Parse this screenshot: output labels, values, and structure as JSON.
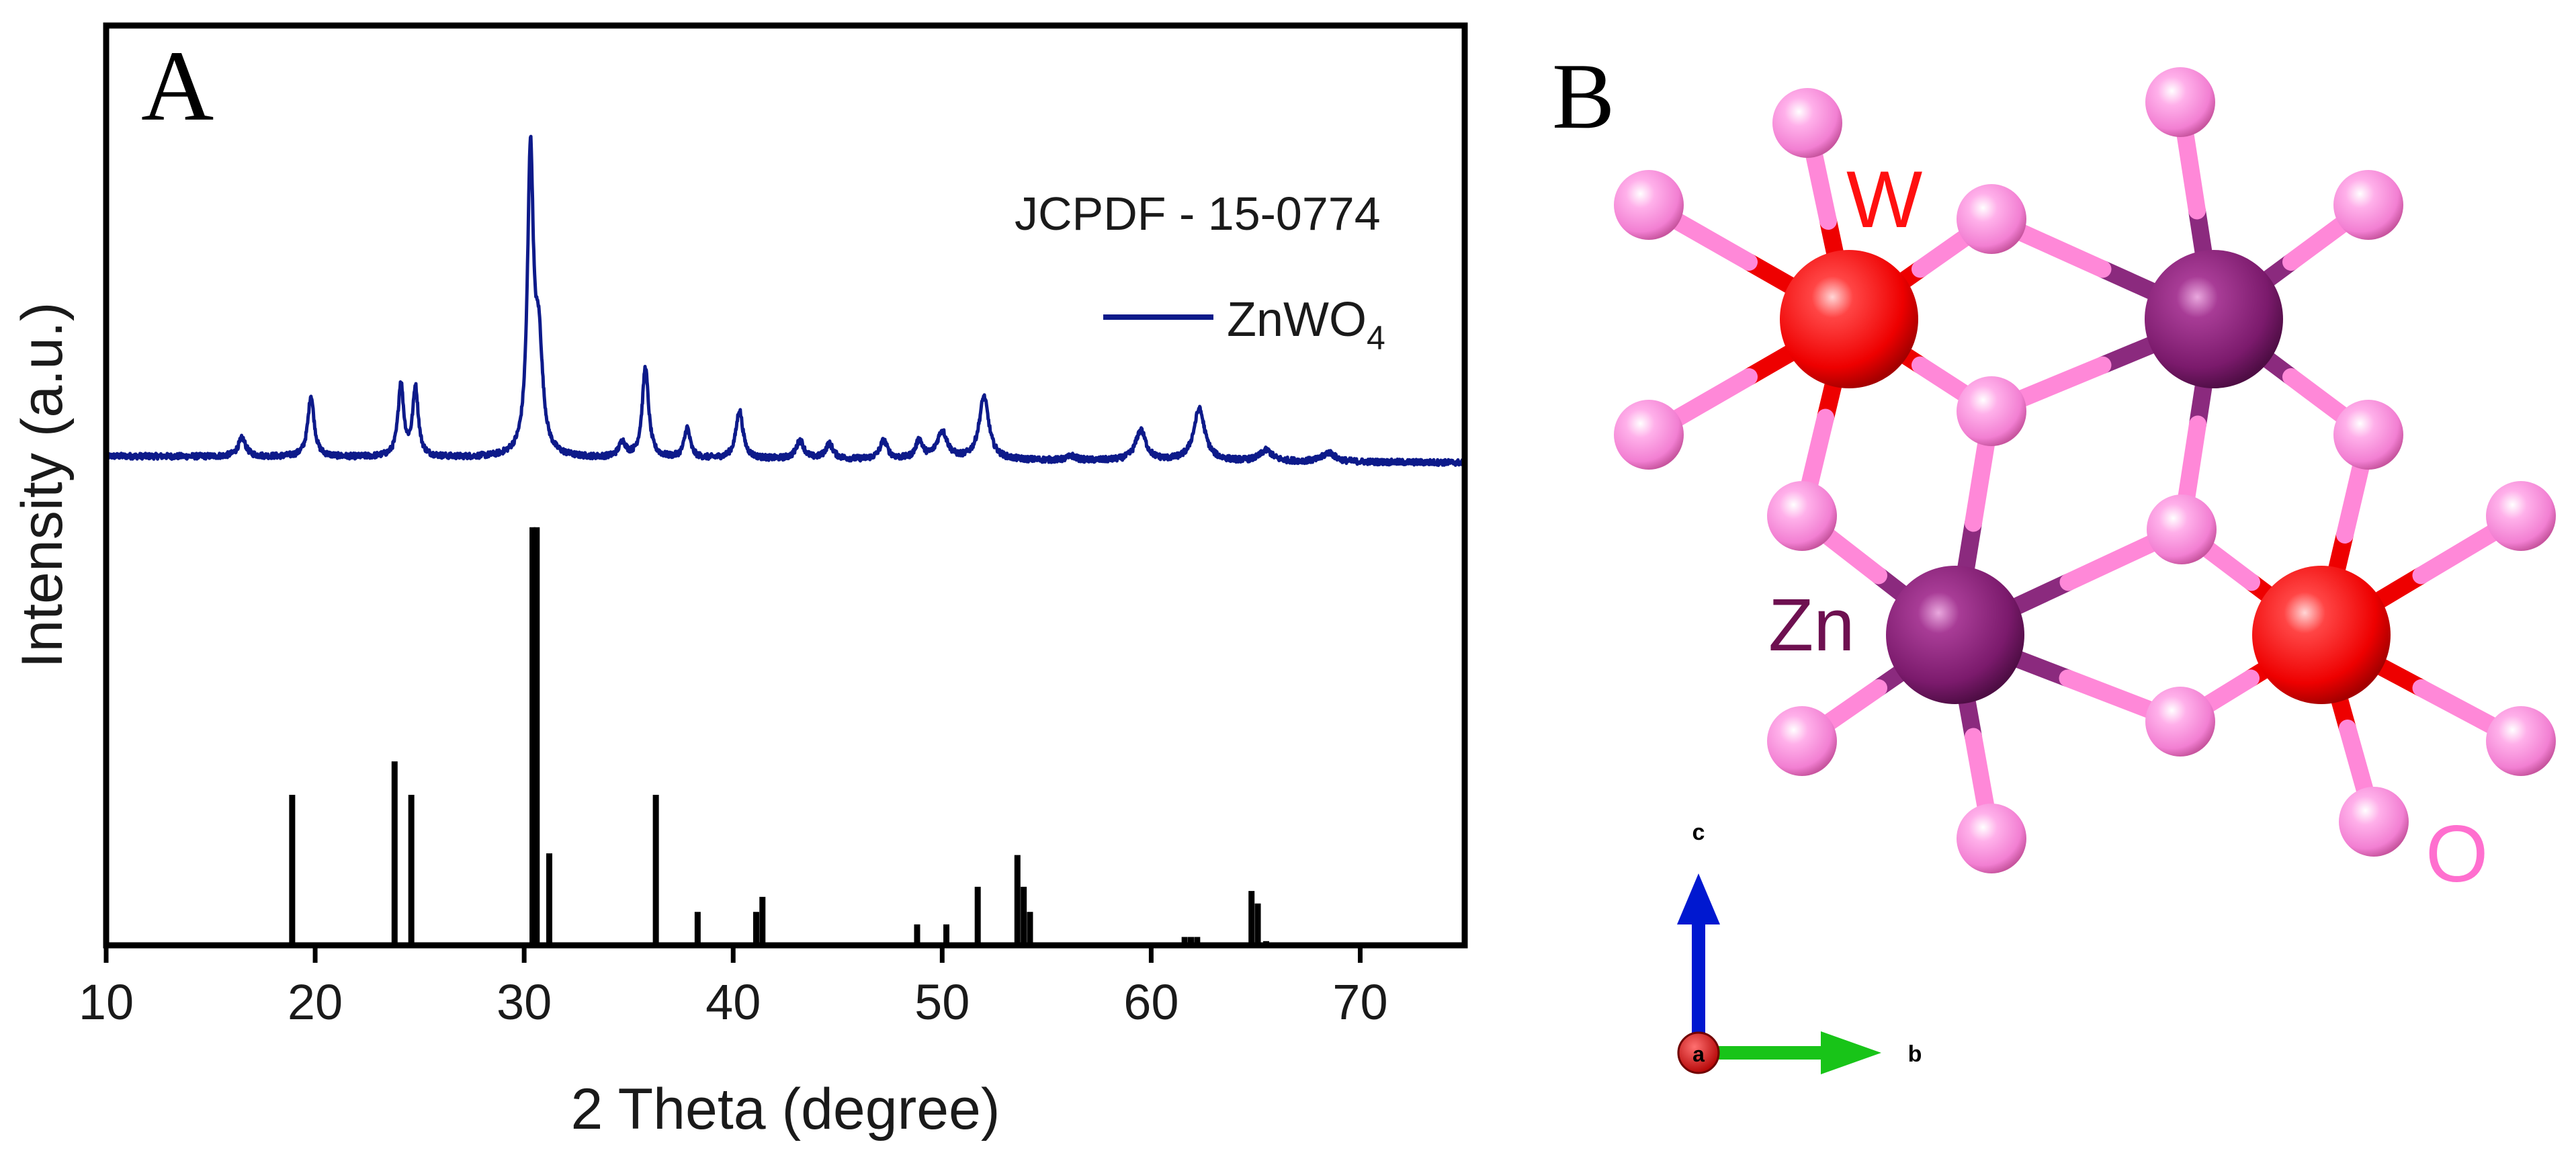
{
  "panels": {
    "a_letter": "A",
    "b_letter": "B"
  },
  "chart_data": {
    "type": "line",
    "title": "",
    "xlabel": "2 Theta (degree)",
    "ylabel": "Intensity (a.u.)",
    "xlim": [
      10,
      75
    ],
    "ylim": [
      0,
      1.1
    ],
    "grid": false,
    "xticks": [
      10,
      20,
      30,
      40,
      50,
      60,
      70
    ],
    "xtick_labels": [
      "10",
      "20",
      "30",
      "40",
      "50",
      "60",
      "70"
    ],
    "annotation": "JCPDF - 15-0774",
    "legend": {
      "position": "top-right",
      "entries": [
        {
          "label": "ZnWO",
          "subscript": "4",
          "color": "#0d1a8a"
        }
      ]
    },
    "series": [
      {
        "name": "ZnWO4 measured pattern",
        "color": "#0d1a8a",
        "baseline": 0.585,
        "noise": 0.0035,
        "peaks": [
          {
            "x": 16.5,
            "h": 0.022,
            "w": 0.22
          },
          {
            "x": 19.8,
            "h": 0.073,
            "w": 0.18
          },
          {
            "x": 24.1,
            "h": 0.087,
            "w": 0.16
          },
          {
            "x": 24.8,
            "h": 0.082,
            "w": 0.16
          },
          {
            "x": 30.3,
            "h": 0.355,
            "w": 0.17
          },
          {
            "x": 30.7,
            "h": 0.125,
            "w": 0.22
          },
          {
            "x": 34.7,
            "h": 0.018,
            "w": 0.2
          },
          {
            "x": 35.8,
            "h": 0.108,
            "w": 0.18
          },
          {
            "x": 37.8,
            "h": 0.036,
            "w": 0.17
          },
          {
            "x": 40.3,
            "h": 0.058,
            "w": 0.2
          },
          {
            "x": 43.2,
            "h": 0.022,
            "w": 0.22
          },
          {
            "x": 44.6,
            "h": 0.018,
            "w": 0.22
          },
          {
            "x": 47.2,
            "h": 0.022,
            "w": 0.22
          },
          {
            "x": 48.9,
            "h": 0.022,
            "w": 0.2
          },
          {
            "x": 50.0,
            "h": 0.033,
            "w": 0.3
          },
          {
            "x": 52.0,
            "h": 0.075,
            "w": 0.28
          },
          {
            "x": 56.2,
            "h": 0.005,
            "w": 0.25
          },
          {
            "x": 59.5,
            "h": 0.036,
            "w": 0.3
          },
          {
            "x": 62.3,
            "h": 0.062,
            "w": 0.32
          },
          {
            "x": 65.5,
            "h": 0.013,
            "w": 0.35
          },
          {
            "x": 68.5,
            "h": 0.011,
            "w": 0.35
          }
        ]
      },
      {
        "name": "JCPDF 15-0774 reference lines",
        "type": "stick",
        "color": "#000000",
        "x": [
          18.9,
          23.8,
          24.6,
          30.4,
          30.6,
          31.2,
          36.3,
          38.3,
          41.1,
          41.4,
          48.8,
          50.2,
          51.7,
          53.6,
          53.9,
          54.2,
          61.6,
          61.9,
          62.2,
          64.8,
          65.1,
          65.5
        ],
        "values": [
          0.18,
          0.22,
          0.18,
          0.5,
          0.5,
          0.11,
          0.18,
          0.04,
          0.04,
          0.058,
          0.025,
          0.025,
          0.07,
          0.108,
          0.07,
          0.04,
          0.01,
          0.01,
          0.01,
          0.065,
          0.05,
          0.005
        ]
      }
    ]
  },
  "structure": {
    "labels": {
      "w": "W",
      "zn": "Zn",
      "o": "O"
    },
    "axes": {
      "c": "c",
      "b": "b",
      "a": "a"
    },
    "colors": {
      "w": "#ff1a1a",
      "zn": "#8a1f7a",
      "o": "#ff88d8",
      "w_bond": "#ee0000",
      "zn_bond": "#8b2a7e",
      "o_label": "#ff6fcf",
      "zn_label": "#6e1050"
    }
  }
}
